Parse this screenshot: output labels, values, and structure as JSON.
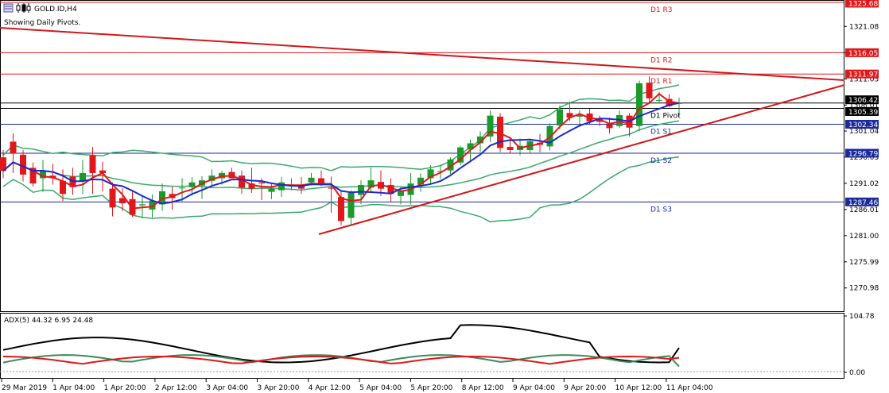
{
  "header": {
    "symbol": "GOLD.ID,H4",
    "subtitle": "Showing Daily Pivots."
  },
  "adx_label": "ADX(5) 44.32 6.95 24.48",
  "price_axis": {
    "ticks": [
      "1321.08",
      "1316.05",
      "1311.03",
      "1306.01",
      "1301.04",
      "1296.05",
      "1291.02",
      "1286.01",
      "1281.00",
      "1275.99",
      "1270.98"
    ],
    "tagged": [
      {
        "label": "1325.68",
        "bg": "#e0181b"
      },
      {
        "label": "1316.05",
        "bg": "#e0181b"
      },
      {
        "label": "1311.97",
        "bg": "#e0181b"
      },
      {
        "label": "1306.42",
        "bg": "#000000"
      },
      {
        "label": "1305.39",
        "bg": "#000000"
      },
      {
        "label": "1302.34",
        "bg": "#1a2a9e"
      },
      {
        "label": "1296.79",
        "bg": "#1a2a9e"
      },
      {
        "label": "1287.46",
        "bg": "#1a2a9e"
      }
    ]
  },
  "adx_axis": {
    "ticks": [
      "104.78",
      "0.00"
    ]
  },
  "time_axis": [
    "29 Mar 2019",
    "1 Apr 04:00",
    "1 Apr 20:00",
    "2 Apr 12:00",
    "3 Apr 04:00",
    "3 Apr 20:00",
    "4 Apr 12:00",
    "5 Apr 04:00",
    "5 Apr 20:00",
    "8 Apr 12:00",
    "9 Apr 04:00",
    "9 Apr 20:00",
    "10 Apr 12:00",
    "11 Apr 04:00"
  ],
  "pivots": [
    {
      "name": "D1 R3",
      "value": 1325.68,
      "color": "#e0181b"
    },
    {
      "name": "D1 R2",
      "value": 1316.05,
      "color": "#e0181b"
    },
    {
      "name": "D1 R1",
      "value": 1311.97,
      "color": "#e0181b"
    },
    {
      "name": "D1 Pivot",
      "value": 1305.39,
      "color": "#000000"
    },
    {
      "name": "D1 S1",
      "value": 1302.34,
      "color": "#1a2a9e"
    },
    {
      "name": "D1 S2",
      "value": 1296.79,
      "color": "#1a2a9e"
    },
    {
      "name": "D1 S3",
      "value": 1287.46,
      "color": "#1a2a9e"
    }
  ],
  "colors": {
    "bull": "#1a9a2a",
    "bear": "#e0181b",
    "ma_fast": "#e0181b",
    "ma_slow": "#1a2acc",
    "bollinger": "#3aaa6a",
    "trendline": "#d0181b",
    "adx": "#000000",
    "plus_di": "#3a8a5a",
    "minus_di": "#e0181b"
  },
  "chart_data": {
    "type": "candlestick",
    "symbol": "GOLD.ID",
    "timeframe": "H4",
    "ylim": [
      1266.5,
      1326.5
    ],
    "candles": [
      [
        1296.0,
        1297.4,
        1292.0,
        1293.4
      ],
      [
        1299.0,
        1300.6,
        1293.0,
        1296.7
      ],
      [
        1296.5,
        1297.4,
        1291.4,
        1292.7
      ],
      [
        1294.0,
        1295.0,
        1290.4,
        1291.0
      ],
      [
        1292.0,
        1295.5,
        1289.4,
        1293.4
      ],
      [
        1292.5,
        1294.8,
        1290.8,
        1292.0
      ],
      [
        1291.5,
        1293.7,
        1287.6,
        1289.0
      ],
      [
        1292.3,
        1294.0,
        1288.8,
        1290.3
      ],
      [
        1291.5,
        1295.5,
        1289.0,
        1293.0
      ],
      [
        1296.4,
        1298.0,
        1289.0,
        1293.0
      ],
      [
        1293.5,
        1295.2,
        1289.5,
        1293.0
      ],
      [
        1290.0,
        1291.2,
        1284.7,
        1286.4
      ],
      [
        1288.2,
        1290.1,
        1285.7,
        1287.2
      ],
      [
        1288.0,
        1289.7,
        1284.6,
        1285.0
      ],
      [
        1286.8,
        1288.8,
        1284.3,
        1287.0
      ],
      [
        1286.0,
        1288.9,
        1284.5,
        1287.7
      ],
      [
        1287.0,
        1291.0,
        1285.8,
        1289.5
      ],
      [
        1289.0,
        1290.4,
        1286.0,
        1288.2
      ],
      [
        1290.2,
        1292.0,
        1287.5,
        1290.2
      ],
      [
        1290.3,
        1292.2,
        1288.7,
        1291.2
      ],
      [
        1290.6,
        1292.4,
        1288.0,
        1291.6
      ],
      [
        1291.5,
        1293.7,
        1290.5,
        1292.5
      ],
      [
        1292.0,
        1293.4,
        1290.8,
        1293.0
      ],
      [
        1293.2,
        1294.0,
        1292.0,
        1292.0
      ],
      [
        1292.5,
        1293.5,
        1289.0,
        1290.2
      ],
      [
        1291.0,
        1294.0,
        1289.2,
        1290.0
      ],
      [
        1291.2,
        1292.0,
        1287.8,
        1291.0
      ],
      [
        1289.4,
        1291.0,
        1288.0,
        1290.0
      ],
      [
        1289.7,
        1292.2,
        1288.4,
        1291.2
      ],
      [
        1290.8,
        1292.0,
        1289.7,
        1290.8
      ],
      [
        1290.5,
        1292.2,
        1289.0,
        1290.0
      ],
      [
        1291.2,
        1293.0,
        1290.6,
        1292.1
      ],
      [
        1292.0,
        1293.5,
        1290.5,
        1290.7
      ],
      [
        1290.2,
        1292.3,
        1285.4,
        1290.0
      ],
      [
        1288.4,
        1289.5,
        1283.0,
        1283.8
      ],
      [
        1284.4,
        1289.7,
        1283.0,
        1289.2
      ],
      [
        1288.8,
        1291.6,
        1287.0,
        1290.7
      ],
      [
        1290.2,
        1294.0,
        1289.2,
        1291.6
      ],
      [
        1291.3,
        1293.5,
        1288.6,
        1290.0
      ],
      [
        1290.7,
        1292.0,
        1287.4,
        1289.0
      ],
      [
        1288.6,
        1290.3,
        1287.0,
        1289.5
      ],
      [
        1288.8,
        1293.0,
        1287.0,
        1291.0
      ],
      [
        1290.8,
        1292.9,
        1289.4,
        1292.1
      ],
      [
        1292.0,
        1294.5,
        1291.0,
        1293.7
      ],
      [
        1293.3,
        1294.6,
        1291.8,
        1293.4
      ],
      [
        1293.5,
        1296.0,
        1292.8,
        1295.6
      ],
      [
        1295.0,
        1298.2,
        1294.5,
        1297.9
      ],
      [
        1297.5,
        1299.4,
        1295.3,
        1298.7
      ],
      [
        1298.7,
        1301.0,
        1297.0,
        1300.0
      ],
      [
        1300.0,
        1305.0,
        1299.0,
        1304.0
      ],
      [
        1303.8,
        1304.5,
        1297.0,
        1297.8
      ],
      [
        1298.0,
        1299.9,
        1296.8,
        1297.4
      ],
      [
        1297.4,
        1299.6,
        1296.4,
        1298.2
      ],
      [
        1297.4,
        1299.6,
        1296.7,
        1299.1
      ],
      [
        1298.8,
        1300.5,
        1297.0,
        1298.4
      ],
      [
        1298.1,
        1302.5,
        1297.3,
        1302.0
      ],
      [
        1302.1,
        1306.0,
        1301.4,
        1305.2
      ],
      [
        1304.5,
        1306.7,
        1303.0,
        1303.6
      ],
      [
        1303.8,
        1305.0,
        1301.8,
        1304.2
      ],
      [
        1304.4,
        1305.3,
        1302.3,
        1302.9
      ],
      [
        1303.4,
        1304.0,
        1302.0,
        1302.8
      ],
      [
        1302.3,
        1303.6,
        1300.6,
        1301.6
      ],
      [
        1302.0,
        1305.0,
        1301.6,
        1304.1
      ],
      [
        1304.0,
        1304.5,
        1300.0,
        1301.7
      ],
      [
        1302.0,
        1310.7,
        1301.0,
        1310.2
      ],
      [
        1310.3,
        1311.5,
        1306.2,
        1307.3
      ],
      [
        1307.0,
        1308.6,
        1306.3,
        1307.0
      ],
      [
        1307.2,
        1308.1,
        1305.6,
        1305.8
      ],
      [
        1306.4,
        1307.4,
        1303.8,
        1306.4
      ]
    ],
    "series_indicator_adx": [
      [
        "ADX",
        44.32
      ],
      [
        "+DI",
        6.95
      ],
      [
        "-DI",
        24.48
      ]
    ]
  }
}
